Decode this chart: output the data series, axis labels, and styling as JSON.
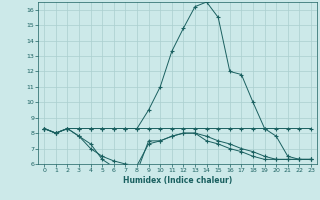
{
  "title": "",
  "xlabel": "Humidex (Indice chaleur)",
  "ylabel": "",
  "xlim": [
    -0.5,
    23.5
  ],
  "ylim": [
    6,
    16.5
  ],
  "yticks": [
    6,
    7,
    8,
    9,
    10,
    11,
    12,
    13,
    14,
    15,
    16
  ],
  "xticks": [
    0,
    1,
    2,
    3,
    4,
    5,
    6,
    7,
    8,
    9,
    10,
    11,
    12,
    13,
    14,
    15,
    16,
    17,
    18,
    19,
    20,
    21,
    22,
    23
  ],
  "bg_color": "#cce9e9",
  "line_color": "#1a6060",
  "grid_color": "#aacfcf",
  "lines": [
    {
      "x": [
        0,
        1,
        2,
        3,
        4,
        5,
        6,
        7,
        8,
        9,
        10,
        11,
        12,
        13,
        14,
        15,
        16,
        17,
        18,
        19,
        20,
        21,
        22,
        23
      ],
      "y": [
        8.3,
        8.0,
        8.3,
        8.3,
        8.3,
        8.3,
        8.3,
        8.3,
        8.3,
        9.5,
        11.0,
        13.3,
        14.8,
        16.2,
        16.5,
        15.5,
        12.0,
        11.8,
        10.0,
        8.3,
        8.3,
        8.3,
        8.3,
        8.3
      ]
    },
    {
      "x": [
        0,
        1,
        2,
        3,
        4,
        5,
        6,
        7,
        8,
        9,
        10,
        11,
        12,
        13,
        14,
        15,
        16,
        17,
        18,
        19,
        20,
        21,
        22,
        23
      ],
      "y": [
        8.3,
        8.0,
        8.3,
        7.8,
        7.3,
        6.3,
        5.8,
        5.5,
        5.5,
        7.5,
        7.5,
        7.8,
        8.0,
        8.0,
        7.8,
        7.5,
        7.3,
        7.0,
        6.8,
        6.5,
        6.3,
        6.3,
        6.3,
        6.3
      ]
    },
    {
      "x": [
        0,
        1,
        2,
        3,
        4,
        5,
        6,
        7,
        8,
        9,
        10,
        11,
        12,
        13,
        14,
        15,
        16,
        17,
        18,
        19,
        20,
        21,
        22,
        23
      ],
      "y": [
        8.3,
        8.0,
        8.3,
        8.3,
        8.3,
        8.3,
        8.3,
        8.3,
        8.3,
        8.3,
        8.3,
        8.3,
        8.3,
        8.3,
        8.3,
        8.3,
        8.3,
        8.3,
        8.3,
        8.3,
        7.8,
        6.5,
        6.3,
        6.3
      ]
    },
    {
      "x": [
        0,
        1,
        2,
        3,
        4,
        5,
        6,
        7,
        8,
        9,
        10,
        11,
        12,
        13,
        14,
        15,
        16,
        17,
        18,
        19,
        20,
        21,
        22,
        23
      ],
      "y": [
        8.3,
        8.0,
        8.3,
        7.8,
        7.0,
        6.5,
        6.2,
        6.0,
        5.9,
        7.3,
        7.5,
        7.8,
        8.0,
        8.0,
        7.5,
        7.3,
        7.0,
        6.8,
        6.5,
        6.3,
        6.3,
        6.3,
        6.3,
        6.3
      ]
    }
  ]
}
